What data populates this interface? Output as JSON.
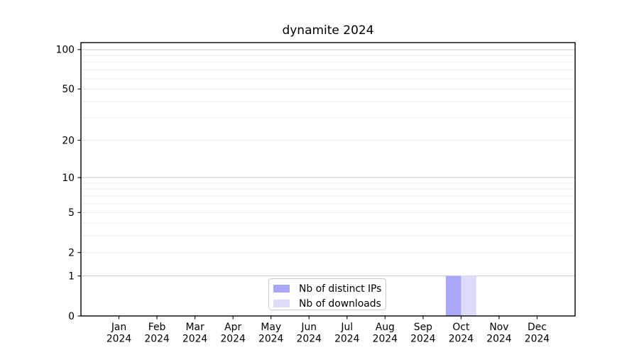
{
  "chart_data": {
    "type": "bar",
    "title": "dynamite 2024",
    "categories": [
      "Jan 2024",
      "Feb 2024",
      "Mar 2024",
      "Apr 2024",
      "May 2024",
      "Jun 2024",
      "Jul 2024",
      "Aug 2024",
      "Sep 2024",
      "Oct 2024",
      "Nov 2024",
      "Dec 2024"
    ],
    "series": [
      {
        "name": "Nb of distinct IPs",
        "color": "#a8a8f6",
        "values": [
          0,
          0,
          0,
          0,
          0,
          0,
          0,
          0,
          0,
          1,
          0,
          0
        ]
      },
      {
        "name": "Nb of downloads",
        "color": "#dcdcfb",
        "values": [
          0,
          0,
          0,
          0,
          0,
          0,
          0,
          0,
          0,
          1,
          0,
          0
        ]
      }
    ],
    "yscale": "log1p",
    "ylim": [
      0,
      113
    ],
    "yticks": [
      0,
      1,
      2,
      5,
      10,
      20,
      50,
      100
    ],
    "major_gridlines": [
      1,
      10,
      100
    ],
    "minor_gridlines": [
      2,
      3,
      4,
      5,
      6,
      7,
      8,
      9,
      20,
      30,
      40,
      50,
      60,
      70,
      80,
      90
    ],
    "grid": true,
    "legend_position": "inside-bottom-center",
    "colors": {
      "major_grid": "#c8c8c8",
      "minor_grid": "#ebebeb",
      "axis": "#000000",
      "background": "#ffffff"
    }
  }
}
